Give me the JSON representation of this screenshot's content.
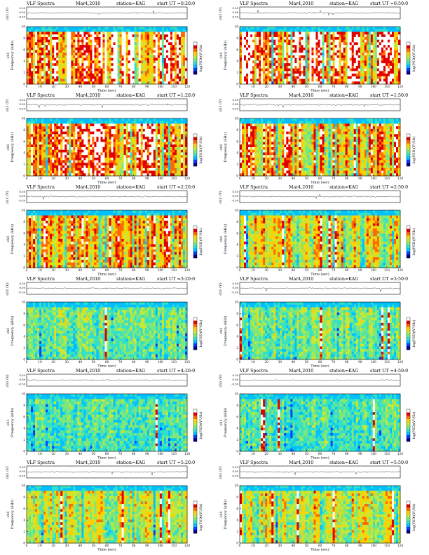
{
  "figure": {
    "colors": {
      "spectrum_scale": [
        "#00008a",
        "#0040ff",
        "#00c0ff",
        "#33e0c8",
        "#7de87a",
        "#c8e832",
        "#ffd000",
        "#ff6a00",
        "#e00000",
        "#ffffff"
      ]
    }
  },
  "chart_data": [
    {
      "type": "heatmap",
      "header": {
        "title": "VLF Spectra",
        "date": "Mar4,2010",
        "station": "station=KAG",
        "start": "start UT =0:20:0"
      },
      "ylabel_top": "ch1 (V)",
      "ylabel_spec": "Frequency (kHz)",
      "ylabel_spec_prefix": "ch1",
      "colorbar_label": "log(PSD)(V²/Hz)",
      "xlabel": "Time (sec)",
      "top_ticks": [
        "0.50",
        "0.00",
        "-0.50"
      ],
      "y_ticks": [
        "0",
        "2",
        "4",
        "6",
        "8",
        "10"
      ],
      "x_ticks": [
        "0",
        "10",
        "20",
        "30",
        "40",
        "50",
        "60",
        "70",
        "80",
        "90",
        "100",
        "110",
        "120"
      ],
      "xlim": [
        0,
        120
      ],
      "ylim": [
        0,
        10
      ],
      "activity": 0.92
    },
    {
      "type": "heatmap",
      "header": {
        "title": "VLF Spectra",
        "date": "Mar4,2010",
        "station": "station=KAG",
        "start": "start UT =0:50:0"
      },
      "ylabel_top": "ch1 (V)",
      "ylabel_spec": "Frequency (kHz)",
      "ylabel_spec_prefix": "ch1",
      "colorbar_label": "log(PSD)(V²/Hz)",
      "xlabel": "Time (sec)",
      "top_ticks": [
        "0.50",
        "0.00",
        "-0.50"
      ],
      "y_ticks": [
        "0",
        "2",
        "4",
        "6",
        "8",
        "10"
      ],
      "x_ticks": [
        "0",
        "10",
        "20",
        "30",
        "40",
        "50",
        "60",
        "70",
        "80",
        "90",
        "100",
        "110",
        "120"
      ],
      "xlim": [
        0,
        120
      ],
      "ylim": [
        0,
        10
      ],
      "activity": 0.95
    },
    {
      "type": "heatmap",
      "header": {
        "title": "VLF Spectra",
        "date": "Mar4,2010",
        "station": "station=KAG",
        "start": "start UT =1:20:0"
      },
      "ylabel_top": "ch1 (V)",
      "ylabel_spec": "Frequency (kHz)",
      "ylabel_spec_prefix": "ch1",
      "colorbar_label": "log(PSD)(V²/Hz)",
      "xlabel": "Time (sec)",
      "top_ticks": [
        "0.50",
        "0.00",
        "-0.50"
      ],
      "y_ticks": [
        "0",
        "2",
        "4",
        "6",
        "8",
        "10"
      ],
      "x_ticks": [
        "0",
        "10",
        "20",
        "30",
        "40",
        "50",
        "60",
        "70",
        "80",
        "90",
        "100",
        "110",
        "120"
      ],
      "xlim": [
        0,
        120
      ],
      "ylim": [
        0,
        10
      ],
      "activity": 0.82
    },
    {
      "type": "heatmap",
      "header": {
        "title": "VLF Spectra",
        "date": "Mar4,2010",
        "station": "station=KAG",
        "start": "start UT =1:50:0"
      },
      "ylabel_top": "ch1 (V)",
      "ylabel_spec": "Frequency (kHz)",
      "ylabel_spec_prefix": "ch1",
      "colorbar_label": "log(PSD)(V²/Hz)",
      "xlabel": "Time (sec)",
      "top_ticks": [
        "0.50",
        "0.00",
        "-0.50"
      ],
      "y_ticks": [
        "0",
        "2",
        "4",
        "6",
        "8",
        "10"
      ],
      "x_ticks": [
        "0",
        "10",
        "20",
        "30",
        "40",
        "50",
        "60",
        "70",
        "80",
        "90",
        "100",
        "110",
        "120"
      ],
      "xlim": [
        0,
        120
      ],
      "ylim": [
        0,
        10
      ],
      "activity": 0.72
    },
    {
      "type": "heatmap",
      "header": {
        "title": "VLF Spectra",
        "date": "Mar4,2010",
        "station": "station=KAG",
        "start": "start UT =2:20:0"
      },
      "ylabel_top": "ch1 (V)",
      "ylabel_spec": "Frequency (kHz)",
      "ylabel_spec_prefix": "ch1",
      "colorbar_label": "log(PSD)(V²/Hz)",
      "xlabel": "Time (sec)",
      "top_ticks": [
        "0.50",
        "0.00",
        "-0.50"
      ],
      "y_ticks": [
        "0",
        "2",
        "4",
        "6",
        "8",
        "10"
      ],
      "x_ticks": [
        "0",
        "10",
        "20",
        "30",
        "40",
        "50",
        "60",
        "70",
        "80",
        "90",
        "100",
        "110",
        "120"
      ],
      "xlim": [
        0,
        120
      ],
      "ylim": [
        0,
        10
      ],
      "activity": 0.68
    },
    {
      "type": "heatmap",
      "header": {
        "title": "VLF Spectra",
        "date": "Mar4,2010",
        "station": "station=KAG",
        "start": "start UT =2:50:0"
      },
      "ylabel_top": "ch1 (V)",
      "ylabel_spec": "Frequency (kHz)",
      "ylabel_spec_prefix": "ch1",
      "colorbar_label": "log(PSD)(V²/Hz)",
      "xlabel": "Time (sec)",
      "top_ticks": [
        "0.50",
        "0.00",
        "-0.50"
      ],
      "y_ticks": [
        "0",
        "2",
        "4",
        "6",
        "8",
        "10"
      ],
      "x_ticks": [
        "0",
        "10",
        "20",
        "30",
        "40",
        "50",
        "60",
        "70",
        "80",
        "90",
        "100",
        "110",
        "120"
      ],
      "xlim": [
        0,
        120
      ],
      "ylim": [
        0,
        10
      ],
      "activity": 0.55
    },
    {
      "type": "heatmap",
      "header": {
        "title": "VLF Spectra",
        "date": "Mar4,2010",
        "station": "station=KAG",
        "start": "start UT =3:20:0"
      },
      "ylabel_top": "ch1 (V)",
      "ylabel_spec": "Frequency (kHz)",
      "ylabel_spec_prefix": "ch1",
      "colorbar_label": "log(PSD)(V²/Hz)",
      "xlabel": "Time (sec)",
      "top_ticks": [
        "0.50",
        "0.00",
        "-0.50"
      ],
      "y_ticks": [
        "0",
        "2",
        "4",
        "6",
        "8",
        "10"
      ],
      "x_ticks": [
        "0",
        "10",
        "20",
        "30",
        "40",
        "50",
        "60",
        "70",
        "80",
        "90",
        "100",
        "110",
        "120"
      ],
      "xlim": [
        0,
        120
      ],
      "ylim": [
        0,
        10
      ],
      "activity": 0.3
    },
    {
      "type": "heatmap",
      "header": {
        "title": "VLF Spectra",
        "date": "Mar4,2010",
        "station": "station=KAG",
        "start": "start UT =3:50:0"
      },
      "ylabel_top": "ch1 (V)",
      "ylabel_spec": "Frequency (kHz)",
      "ylabel_spec_prefix": "ch1",
      "colorbar_label": "log(PSD)(V²/Hz)",
      "xlabel": "Time (sec)",
      "top_ticks": [
        "0.50",
        "0.00",
        "-0.50"
      ],
      "y_ticks": [
        "0",
        "2",
        "4",
        "6",
        "8",
        "10"
      ],
      "x_ticks": [
        "0",
        "10",
        "20",
        "30",
        "40",
        "50",
        "60",
        "70",
        "80",
        "90",
        "100",
        "110",
        "120"
      ],
      "xlim": [
        0,
        120
      ],
      "ylim": [
        0,
        10
      ],
      "activity": 0.32
    },
    {
      "type": "heatmap",
      "header": {
        "title": "VLF Spectra",
        "date": "Mar4,2010",
        "station": "station=KAG",
        "start": "start UT =4:20:0"
      },
      "ylabel_top": "ch1 (V)",
      "ylabel_spec": "Frequency (kHz)",
      "ylabel_spec_prefix": "ch1",
      "colorbar_label": "log(PSD)(V²/Hz)",
      "xlabel": "Time (sec)",
      "top_ticks": [
        "0.50",
        "0.00",
        "-0.50"
      ],
      "y_ticks": [
        "0",
        "2",
        "4",
        "6",
        "8",
        "10"
      ],
      "x_ticks": [
        "0",
        "10",
        "20",
        "30",
        "40",
        "50",
        "60",
        "70",
        "80",
        "90",
        "100",
        "110",
        "120"
      ],
      "xlim": [
        0,
        120
      ],
      "ylim": [
        0,
        10
      ],
      "activity": 0.22
    },
    {
      "type": "heatmap",
      "header": {
        "title": "VLF Spectra",
        "date": "Mar4,2010",
        "station": "station=KAG",
        "start": "start UT =4:50:0"
      },
      "ylabel_top": "ch1 (V)",
      "ylabel_spec": "Frequency (kHz)",
      "ylabel_spec_prefix": "ch1",
      "colorbar_label": "log(PSD)(V²/Hz)",
      "xlabel": "Time (sec)",
      "top_ticks": [
        "0.50",
        "0.00",
        "-0.50"
      ],
      "y_ticks": [
        "0",
        "2",
        "4",
        "6",
        "8",
        "10"
      ],
      "x_ticks": [
        "0",
        "10",
        "20",
        "30",
        "40",
        "50",
        "60",
        "70",
        "80",
        "90",
        "100",
        "110",
        "120"
      ],
      "xlim": [
        0,
        120
      ],
      "ylim": [
        0,
        10
      ],
      "activity": 0.22
    },
    {
      "type": "heatmap",
      "header": {
        "title": "VLF Spectra",
        "date": "Mar4,2010",
        "station": "station=KAG",
        "start": "start UT =5:20:0"
      },
      "ylabel_top": "ch1 (V)",
      "ylabel_spec": "Frequency (kHz)",
      "ylabel_spec_prefix": "ch1",
      "colorbar_label": "log(PSD)(V²/Hz)",
      "xlabel": "Time (sec)",
      "top_ticks": [
        "0.50",
        "0.00",
        "-0.50"
      ],
      "y_ticks": [
        "0",
        "2",
        "4",
        "6",
        "8",
        "10"
      ],
      "x_ticks": [
        "0",
        "10",
        "20",
        "30",
        "40",
        "50",
        "60",
        "70",
        "80",
        "90",
        "100",
        "110",
        "120"
      ],
      "xlim": [
        0,
        120
      ],
      "ylim": [
        0,
        10
      ],
      "activity": 0.48
    },
    {
      "type": "heatmap",
      "header": {
        "title": "VLF Spectra",
        "date": "Mar4,2010",
        "station": "station=KAG",
        "start": "start UT =5:50:0"
      },
      "ylabel_top": "ch1 (V)",
      "ylabel_spec": "Frequency (kHz)",
      "ylabel_spec_prefix": "ch1",
      "colorbar_label": "log(PSD)(V²/Hz)",
      "xlabel": "Time (sec)",
      "top_ticks": [
        "0.50",
        "0.00",
        "-0.50"
      ],
      "y_ticks": [
        "0",
        "2",
        "4",
        "6",
        "8",
        "10"
      ],
      "x_ticks": [
        "0",
        "10",
        "20",
        "30",
        "40",
        "50",
        "60",
        "70",
        "80",
        "90",
        "100",
        "110",
        "120"
      ],
      "xlim": [
        0,
        120
      ],
      "ylim": [
        0,
        10
      ],
      "activity": 0.5
    }
  ]
}
